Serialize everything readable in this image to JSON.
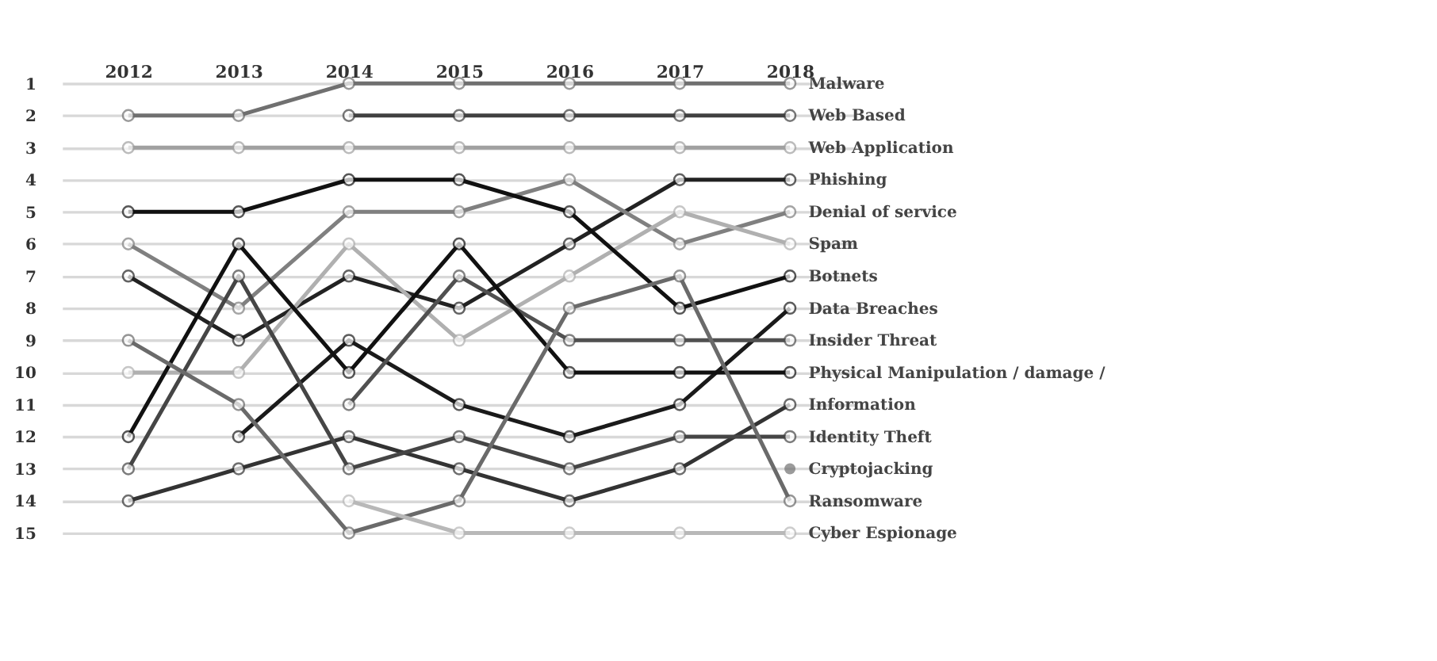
{
  "chart_data": {
    "type": "line",
    "categories": [
      "2012",
      "2013",
      "2014",
      "2015",
      "2016",
      "2017",
      "2018"
    ],
    "ylim": [
      15,
      1
    ],
    "yticks": [
      1,
      2,
      3,
      4,
      5,
      6,
      7,
      8,
      9,
      10,
      11,
      12,
      13,
      14,
      15
    ],
    "grid": "y",
    "marker": "circle",
    "line_style": "solid",
    "series": [
      {
        "name": "Malware",
        "color": "#707070",
        "values": [
          2,
          2,
          1,
          1,
          1,
          1,
          1
        ]
      },
      {
        "name": "Web Based",
        "color": "#404040",
        "values": [
          null,
          null,
          2,
          2,
          2,
          2,
          2
        ]
      },
      {
        "name": "Web Application",
        "color": "#a0a0a0",
        "values": [
          3,
          3,
          3,
          3,
          3,
          3,
          3
        ]
      },
      {
        "name": "Phishing",
        "color": "#222222",
        "values": [
          7,
          9,
          7,
          8,
          6,
          4,
          4
        ]
      },
      {
        "name": "Denial of service",
        "color": "#808080",
        "values": [
          6,
          8,
          5,
          5,
          4,
          6,
          5
        ]
      },
      {
        "name": "Spam",
        "color": "#b0b0b0",
        "values": [
          10,
          10,
          6,
          9,
          7,
          5,
          6
        ]
      },
      {
        "name": "Botnets",
        "color": "#111111",
        "values": [
          5,
          5,
          4,
          4,
          5,
          8,
          7
        ]
      },
      {
        "name": "Data Breaches",
        "color": "#1a1a1a",
        "values": [
          null,
          12,
          9,
          11,
          12,
          11,
          8
        ]
      },
      {
        "name": "Insider Threat",
        "color": "#505050",
        "values": [
          null,
          null,
          11,
          7,
          9,
          9,
          9
        ]
      },
      {
        "name": "Physical Manipulation / damage /",
        "color": "#111111",
        "values": [
          12,
          6,
          10,
          6,
          10,
          10,
          10
        ]
      },
      {
        "name": "Information",
        "color": "#333333",
        "values": [
          14,
          13,
          12,
          13,
          14,
          13,
          11
        ]
      },
      {
        "name": "Identity Theft",
        "color": "#454545",
        "values": [
          13,
          7,
          13,
          12,
          13,
          12,
          12
        ]
      },
      {
        "name": "Cryptojacking",
        "color": "#707070",
        "values": [
          null,
          null,
          null,
          null,
          null,
          null,
          13
        ]
      },
      {
        "name": "Ransomware",
        "color": "#6a6a6a",
        "values": [
          9,
          11,
          15,
          14,
          8,
          7,
          14
        ]
      },
      {
        "name": "Cyber Espionage",
        "color": "#b8b8b8",
        "values": [
          null,
          null,
          14,
          15,
          15,
          15,
          15
        ]
      }
    ]
  }
}
